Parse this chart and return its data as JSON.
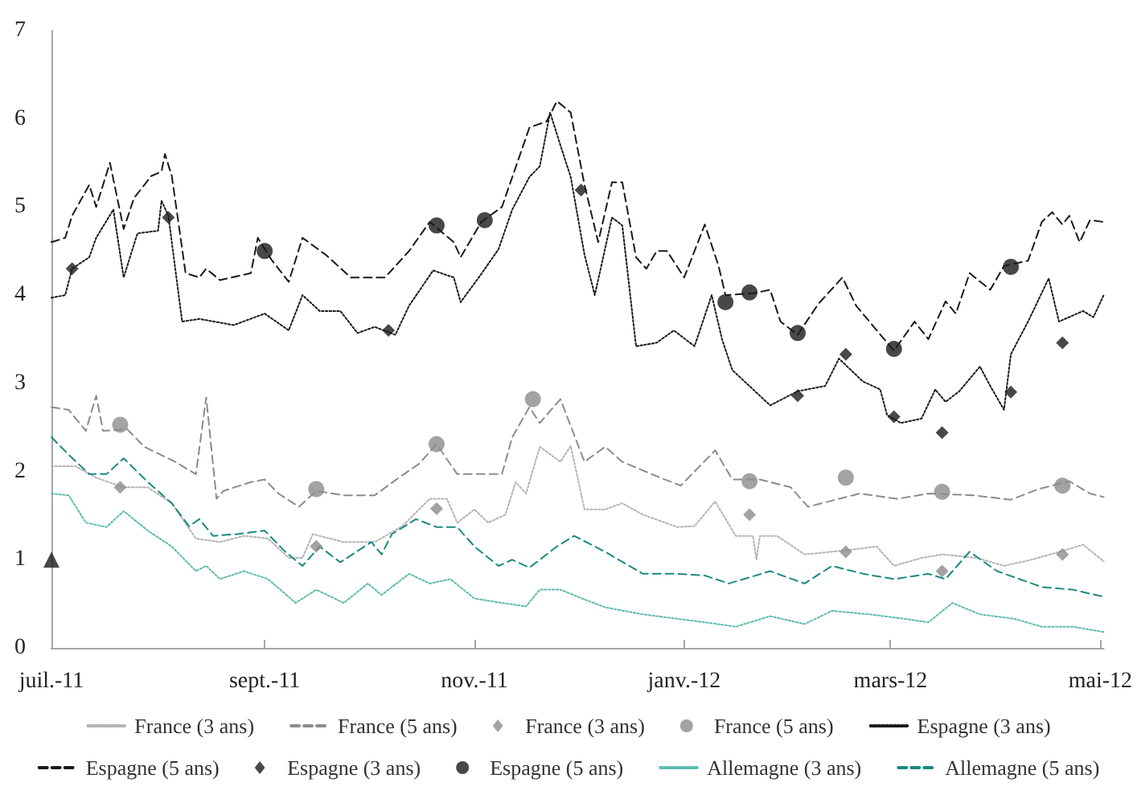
{
  "chart_data": {
    "type": "line",
    "legend": "bottom",
    "xlim": [
      "2011-07-01",
      "2012-05-02"
    ],
    "xticks": [
      {
        "value": "2011-07-01",
        "label": "juil.-11"
      },
      {
        "value": "2011-09-01",
        "label": "sept.-11"
      },
      {
        "value": "2011-11-01",
        "label": "nov.-11"
      },
      {
        "value": "2012-01-01",
        "label": "janv.-12"
      },
      {
        "value": "2012-03-01",
        "label": "mars-12"
      },
      {
        "value": "2012-05-01",
        "label": "mai-12"
      }
    ],
    "ylim": [
      0,
      7
    ],
    "yticks": [
      0,
      1,
      2,
      3,
      4,
      5,
      6,
      7
    ],
    "series": [
      {
        "name": "France (3 ans)",
        "line_style": "dotted",
        "color": "#b4b4b4",
        "x": [
          "2011-07-01",
          "2011-07-08",
          "2011-07-14",
          "2011-07-22",
          "2011-07-29",
          "2011-08-05",
          "2011-08-12",
          "2011-08-19",
          "2011-08-26",
          "2011-09-02",
          "2011-09-08",
          "2011-09-12",
          "2011-09-15",
          "2011-09-24",
          "2011-10-03",
          "2011-10-11",
          "2011-10-19",
          "2011-10-24",
          "2011-10-27",
          "2011-11-01",
          "2011-11-05",
          "2011-11-10",
          "2011-11-13",
          "2011-11-16",
          "2011-11-20",
          "2011-11-26",
          "2011-11-29",
          "2011-12-03",
          "2011-12-09",
          "2011-12-14",
          "2011-12-20",
          "2011-12-30",
          "2012-01-04",
          "2012-01-10",
          "2012-01-16",
          "2012-01-21",
          "2012-01-22",
          "2012-01-23",
          "2012-01-28",
          "2012-02-05",
          "2012-02-18",
          "2012-02-26",
          "2012-03-02",
          "2012-03-10",
          "2012-03-16",
          "2012-03-26",
          "2012-04-03",
          "2012-04-11",
          "2012-04-21",
          "2012-04-26",
          "2012-05-02"
        ],
        "values": [
          2.06,
          2.06,
          1.93,
          1.82,
          1.82,
          1.64,
          1.24,
          1.2,
          1.27,
          1.24,
          1.02,
          1.02,
          1.29,
          1.2,
          1.2,
          1.38,
          1.69,
          1.69,
          1.42,
          1.57,
          1.42,
          1.51,
          1.88,
          1.75,
          2.28,
          2.11,
          2.29,
          1.57,
          1.57,
          1.64,
          1.51,
          1.37,
          1.38,
          1.66,
          1.27,
          1.27,
          1.0,
          1.27,
          1.27,
          1.06,
          1.11,
          1.15,
          0.93,
          1.02,
          1.06,
          1.02,
          0.93,
          1.0,
          1.11,
          1.17,
          0.98
        ]
      },
      {
        "name": "France (5 ans)",
        "line_style": "dashed",
        "color": "#8c8c8c",
        "x": [
          "2011-07-01",
          "2011-07-06",
          "2011-07-11",
          "2011-07-14",
          "2011-07-16",
          "2011-07-23",
          "2011-07-28",
          "2011-08-06",
          "2011-08-12",
          "2011-08-15",
          "2011-08-18",
          "2011-08-20",
          "2011-08-28",
          "2011-09-01",
          "2011-09-05",
          "2011-09-11",
          "2011-09-16",
          "2011-09-24",
          "2011-10-03",
          "2011-10-10",
          "2011-10-16",
          "2011-10-21",
          "2011-10-27",
          "2011-11-04",
          "2011-11-09",
          "2011-11-12",
          "2011-11-17",
          "2011-11-20",
          "2011-11-26",
          "2011-12-03",
          "2011-12-09",
          "2011-12-14",
          "2011-12-25",
          "2011-12-31",
          "2012-01-10",
          "2012-01-15",
          "2012-01-23",
          "2012-02-01",
          "2012-02-06",
          "2012-02-15",
          "2012-02-21",
          "2012-03-03",
          "2012-03-12",
          "2012-03-25",
          "2012-04-05",
          "2012-04-13",
          "2012-04-22",
          "2012-04-28",
          "2012-05-02"
        ],
        "values": [
          2.73,
          2.7,
          2.46,
          2.86,
          2.46,
          2.48,
          2.28,
          2.11,
          1.97,
          2.84,
          1.69,
          1.78,
          1.88,
          1.91,
          1.75,
          1.6,
          1.78,
          1.73,
          1.73,
          1.93,
          2.09,
          2.31,
          1.97,
          1.97,
          1.97,
          2.39,
          2.73,
          2.55,
          2.82,
          2.11,
          2.28,
          2.11,
          1.93,
          1.84,
          2.24,
          1.91,
          1.91,
          1.82,
          1.6,
          1.69,
          1.75,
          1.69,
          1.75,
          1.73,
          1.68,
          1.8,
          1.89,
          1.75,
          1.71
        ]
      },
      {
        "name": "France (3 ans)",
        "type": "scatter",
        "marker": "diamond",
        "color": "#8c8c8c",
        "x": [
          "2011-07-21",
          "2011-09-16",
          "2011-10-21",
          "2012-01-20",
          "2012-02-17",
          "2012-03-16",
          "2012-04-20"
        ],
        "values": [
          1.82,
          1.15,
          1.58,
          1.51,
          1.09,
          0.87,
          1.06
        ]
      },
      {
        "name": "France (5 ans)",
        "type": "scatter",
        "marker": "circle",
        "color": "#8c8c8c",
        "x": [
          "2011-07-21",
          "2011-09-16",
          "2011-10-21",
          "2011-11-18",
          "2012-01-20",
          "2012-02-17",
          "2012-03-16",
          "2012-04-20"
        ],
        "values": [
          2.53,
          1.8,
          2.31,
          2.82,
          1.89,
          1.93,
          1.77,
          1.84
        ]
      },
      {
        "name": "Espagne (3 ans)",
        "line_style": "dotted",
        "color": "#1a1a1a",
        "x": [
          "2011-07-01",
          "2011-07-05",
          "2011-07-07",
          "2011-07-12",
          "2011-07-14",
          "2011-07-19",
          "2011-07-22",
          "2011-07-26",
          "2011-08-01",
          "2011-08-02",
          "2011-08-04",
          "2011-08-08",
          "2011-08-13",
          "2011-08-23",
          "2011-09-01",
          "2011-09-08",
          "2011-09-12",
          "2011-09-17",
          "2011-09-23",
          "2011-09-28",
          "2011-10-03",
          "2011-10-09",
          "2011-10-13",
          "2011-10-20",
          "2011-10-26",
          "2011-10-28",
          "2011-11-03",
          "2011-11-08",
          "2011-11-12",
          "2011-11-17",
          "2011-11-20",
          "2011-11-23",
          "2011-11-26",
          "2011-11-29",
          "2011-12-03",
          "2011-12-06",
          "2011-12-11",
          "2011-12-14",
          "2011-12-18",
          "2011-12-24",
          "2011-12-29",
          "2012-01-04",
          "2012-01-09",
          "2012-01-12",
          "2012-01-15",
          "2012-01-26",
          "2012-02-03",
          "2012-02-11",
          "2012-02-15",
          "2012-02-22",
          "2012-02-27",
          "2012-02-29",
          "2012-03-04",
          "2012-03-10",
          "2012-03-14",
          "2012-03-17",
          "2012-03-21",
          "2012-03-27",
          "2012-03-30",
          "2012-04-03",
          "2012-04-05",
          "2012-04-10",
          "2012-04-16",
          "2012-04-19",
          "2012-04-26",
          "2012-04-29",
          "2012-05-02"
        ],
        "values": [
          3.97,
          4.0,
          4.3,
          4.43,
          4.65,
          4.97,
          4.2,
          4.7,
          4.73,
          5.07,
          4.9,
          3.7,
          3.73,
          3.66,
          3.79,
          3.6,
          4.0,
          3.82,
          3.82,
          3.57,
          3.64,
          3.55,
          3.88,
          4.28,
          4.2,
          3.92,
          4.24,
          4.52,
          4.97,
          5.34,
          5.46,
          6.07,
          5.7,
          5.34,
          4.46,
          4.0,
          4.88,
          4.79,
          3.42,
          3.46,
          3.6,
          3.42,
          4.0,
          3.5,
          3.15,
          2.75,
          2.91,
          2.97,
          3.28,
          3.02,
          2.93,
          2.64,
          2.55,
          2.6,
          2.93,
          2.79,
          2.91,
          3.19,
          2.97,
          2.7,
          3.33,
          3.7,
          4.19,
          3.7,
          3.82,
          3.75,
          4.0
        ]
      },
      {
        "name": "Espagne (5 ans)",
        "line_style": "dashed",
        "color": "#1a1a1a",
        "x": [
          "2011-07-01",
          "2011-07-05",
          "2011-07-07",
          "2011-07-12",
          "2011-07-14",
          "2011-07-18",
          "2011-07-22",
          "2011-07-25",
          "2011-07-30",
          "2011-08-02",
          "2011-08-03",
          "2011-08-05",
          "2011-08-09",
          "2011-08-13",
          "2011-08-15",
          "2011-08-19",
          "2011-08-28",
          "2011-08-30",
          "2011-09-03",
          "2011-09-08",
          "2011-09-12",
          "2011-09-19",
          "2011-09-26",
          "2011-10-06",
          "2011-10-13",
          "2011-10-19",
          "2011-10-26",
          "2011-10-28",
          "2011-11-03",
          "2011-11-09",
          "2011-11-17",
          "2011-11-22",
          "2011-11-25",
          "2011-11-29",
          "2011-12-03",
          "2011-12-07",
          "2011-12-11",
          "2011-12-14",
          "2011-12-18",
          "2011-12-21",
          "2011-12-24",
          "2011-12-27",
          "2012-01-01",
          "2012-01-07",
          "2012-01-11",
          "2012-01-13",
          "2012-01-21",
          "2012-01-26",
          "2012-01-29",
          "2012-02-03",
          "2012-02-09",
          "2012-02-16",
          "2012-02-20",
          "2012-02-26",
          "2012-03-02",
          "2012-03-08",
          "2012-03-12",
          "2012-03-17",
          "2012-03-20",
          "2012-03-24",
          "2012-03-30",
          "2012-04-03",
          "2012-04-10",
          "2012-04-14",
          "2012-04-17",
          "2012-04-20",
          "2012-04-22",
          "2012-04-25",
          "2012-04-28",
          "2012-05-02"
        ],
        "values": [
          4.6,
          4.65,
          4.9,
          5.25,
          5.0,
          5.5,
          4.75,
          5.1,
          5.35,
          5.4,
          5.6,
          5.35,
          4.25,
          4.2,
          4.3,
          4.17,
          4.25,
          4.65,
          4.4,
          4.15,
          4.65,
          4.45,
          4.2,
          4.2,
          4.5,
          4.83,
          4.6,
          4.43,
          4.83,
          5.0,
          5.9,
          5.97,
          6.2,
          6.07,
          5.25,
          4.6,
          5.28,
          5.28,
          4.43,
          4.3,
          4.5,
          4.5,
          4.2,
          4.8,
          4.33,
          4.0,
          4.02,
          4.06,
          3.7,
          3.55,
          3.9,
          4.2,
          3.88,
          3.6,
          3.37,
          3.7,
          3.5,
          3.93,
          3.79,
          4.25,
          4.06,
          4.33,
          4.39,
          4.83,
          4.94,
          4.8,
          4.9,
          4.6,
          4.85,
          4.83
        ]
      },
      {
        "name": "Espagne (3 ans)",
        "type": "scatter",
        "marker": "diamond",
        "color": "#1a1a1a",
        "x": [
          "2011-07-07",
          "2011-08-04",
          "2011-10-07",
          "2011-12-02",
          "2012-02-03",
          "2012-02-17",
          "2012-03-02",
          "2012-03-16",
          "2012-04-05",
          "2012-04-20"
        ],
        "values": [
          4.3,
          4.88,
          3.6,
          5.19,
          2.86,
          3.33,
          2.62,
          2.44,
          2.9,
          3.46
        ]
      },
      {
        "name": "Espagne (5 ans)",
        "type": "scatter",
        "marker": "circle",
        "color": "#1a1a1a",
        "x": [
          "2011-09-01",
          "2011-10-21",
          "2011-11-04",
          "2012-01-13",
          "2012-01-20",
          "2012-02-03",
          "2012-03-02",
          "2012-04-05"
        ],
        "values": [
          4.5,
          4.79,
          4.85,
          3.92,
          4.03,
          3.57,
          3.39,
          4.32
        ]
      },
      {
        "name": "Allemagne (3 ans)",
        "line_style": "dotted",
        "color": "#5cbcae",
        "x": [
          "2011-07-01",
          "2011-07-06",
          "2011-07-11",
          "2011-07-17",
          "2011-07-22",
          "2011-07-29",
          "2011-08-05",
          "2011-08-12",
          "2011-08-15",
          "2011-08-19",
          "2011-08-26",
          "2011-09-02",
          "2011-09-10",
          "2011-09-16",
          "2011-09-24",
          "2011-10-01",
          "2011-10-05",
          "2011-10-13",
          "2011-10-19",
          "2011-10-25",
          "2011-11-01",
          "2011-11-09",
          "2011-11-16",
          "2011-11-20",
          "2011-11-26",
          "2011-12-03",
          "2011-12-09",
          "2011-12-20",
          "2011-12-30",
          "2012-01-07",
          "2012-01-16",
          "2012-01-26",
          "2012-02-05",
          "2012-02-13",
          "2012-02-24",
          "2012-03-05",
          "2012-03-12",
          "2012-03-19",
          "2012-03-27",
          "2012-04-06",
          "2012-04-14",
          "2012-04-23",
          "2012-05-02"
        ],
        "values": [
          1.75,
          1.73,
          1.42,
          1.37,
          1.55,
          1.33,
          1.15,
          0.87,
          0.93,
          0.78,
          0.87,
          0.78,
          0.51,
          0.66,
          0.51,
          0.73,
          0.6,
          0.84,
          0.73,
          0.78,
          0.56,
          0.51,
          0.47,
          0.66,
          0.66,
          0.55,
          0.46,
          0.38,
          0.33,
          0.29,
          0.24,
          0.36,
          0.27,
          0.42,
          0.38,
          0.33,
          0.29,
          0.51,
          0.38,
          0.33,
          0.24,
          0.24,
          0.18
        ]
      },
      {
        "name": "Allemagne (5 ans)",
        "line_style": "dashed",
        "color": "#1a8a80",
        "x": [
          "2011-07-01",
          "2011-07-06",
          "2011-07-12",
          "2011-07-17",
          "2011-07-22",
          "2011-07-29",
          "2011-08-05",
          "2011-08-10",
          "2011-08-13",
          "2011-08-17",
          "2011-08-24",
          "2011-09-01",
          "2011-09-07",
          "2011-09-12",
          "2011-09-17",
          "2011-09-23",
          "2011-10-02",
          "2011-10-05",
          "2011-10-08",
          "2011-10-15",
          "2011-10-21",
          "2011-10-27",
          "2011-11-01",
          "2011-11-08",
          "2011-11-12",
          "2011-11-17",
          "2011-11-25",
          "2011-11-30",
          "2011-12-09",
          "2011-12-20",
          "2011-12-30",
          "2012-01-07",
          "2012-01-14",
          "2012-01-26",
          "2012-02-05",
          "2012-02-13",
          "2012-02-22",
          "2012-03-02",
          "2012-03-12",
          "2012-03-17",
          "2012-03-24",
          "2012-04-01",
          "2012-04-14",
          "2012-04-23",
          "2012-05-02"
        ],
        "values": [
          2.39,
          2.19,
          1.97,
          1.97,
          2.15,
          1.88,
          1.64,
          1.38,
          1.46,
          1.27,
          1.29,
          1.33,
          1.09,
          0.93,
          1.15,
          0.97,
          1.2,
          1.06,
          1.29,
          1.46,
          1.37,
          1.37,
          1.15,
          0.93,
          1.0,
          0.91,
          1.15,
          1.27,
          1.09,
          0.84,
          0.84,
          0.82,
          0.73,
          0.87,
          0.73,
          0.93,
          0.84,
          0.78,
          0.84,
          0.78,
          1.09,
          0.87,
          0.69,
          0.66,
          0.58
        ]
      },
      {
        "type": "scatter",
        "marker": "triangle",
        "color": "#1a1a1a",
        "x": [
          "2011-07-01"
        ],
        "values": [
          1
        ]
      }
    ]
  }
}
